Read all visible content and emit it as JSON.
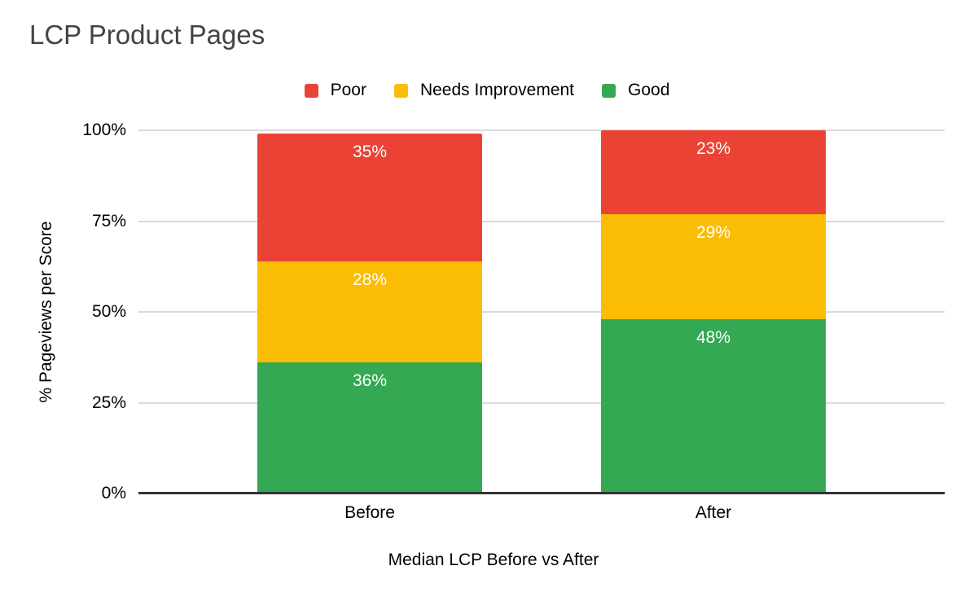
{
  "title": "LCP Product Pages",
  "colors": {
    "poor": "#EA4335",
    "needs_improvement": "#FBBC04",
    "good": "#34A853",
    "title_text": "#434343",
    "axis_text": "#000000",
    "bar_label_text": "#FFFFFF",
    "gridline": "#DADADA",
    "baseline": "#333333",
    "background": "#FFFFFF"
  },
  "chart_data": {
    "type": "bar",
    "stacked": true,
    "title": "LCP Product Pages",
    "xlabel": "Median LCP Before vs After",
    "ylabel": "% Pageviews per Score",
    "categories": [
      "Before",
      "After"
    ],
    "series": [
      {
        "name": "Poor",
        "color": "#EA4335",
        "values": [
          35,
          23
        ],
        "labels": [
          "35%",
          "23%"
        ]
      },
      {
        "name": "Needs Improvement",
        "color": "#FBBC04",
        "values": [
          28,
          29
        ],
        "labels": [
          "28%",
          "29%"
        ]
      },
      {
        "name": "Good",
        "color": "#34A853",
        "values": [
          36,
          48
        ],
        "labels": [
          "36%",
          "48%"
        ]
      }
    ],
    "ylim": [
      0,
      100
    ],
    "y_ticks": [
      {
        "value": 0,
        "label": "0%"
      },
      {
        "value": 25,
        "label": "25%"
      },
      {
        "value": 50,
        "label": "50%"
      },
      {
        "value": 75,
        "label": "75%"
      },
      {
        "value": 100,
        "label": "100%"
      }
    ],
    "grid": true,
    "legend_position": "top"
  }
}
